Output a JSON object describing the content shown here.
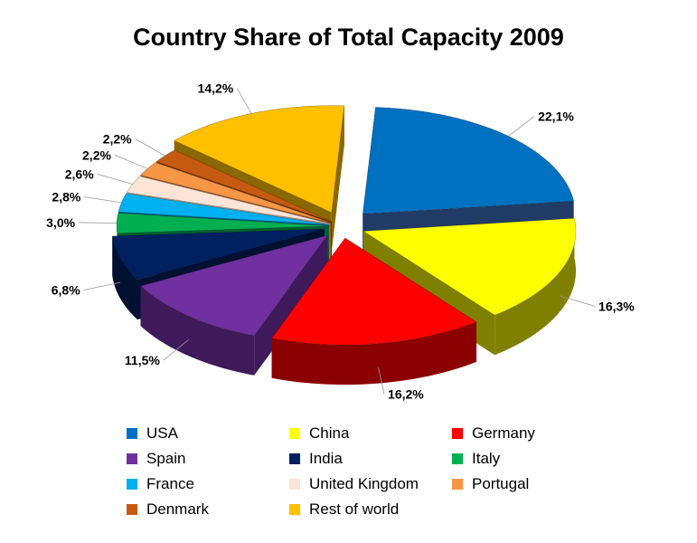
{
  "chart_data": {
    "type": "pie",
    "title": "Country Share of Total Capacity 2009",
    "legend_position": "bottom",
    "slices": [
      {
        "name": "USA",
        "value": 22.1,
        "label": "22,1%",
        "color": "#0070C0",
        "side": "#1F3B66"
      },
      {
        "name": "China",
        "value": 16.3,
        "label": "16,3%",
        "color": "#FFFF00",
        "side": "#808000"
      },
      {
        "name": "Germany",
        "value": 16.2,
        "label": "16,2%",
        "color": "#FF0000",
        "side": "#8B0000"
      },
      {
        "name": "Spain",
        "value": 11.5,
        "label": "11,5%",
        "color": "#7030A0",
        "side": "#3F1A5A"
      },
      {
        "name": "India",
        "value": 6.8,
        "label": "6,8%",
        "color": "#002060",
        "side": "#001030"
      },
      {
        "name": "Italy",
        "value": 3.0,
        "label": "3,0%",
        "color": "#00B050",
        "side": "#006030"
      },
      {
        "name": "France",
        "value": 2.8,
        "label": "2,8%",
        "color": "#00B0F0",
        "side": "#006080"
      },
      {
        "name": "United Kingdom",
        "value": 2.6,
        "label": "2,6%",
        "color": "#FCE4D6",
        "side": "#A89888"
      },
      {
        "name": "Portugal",
        "value": 2.2,
        "label": "2,2%",
        "color": "#F79646",
        "side": "#9A5A28"
      },
      {
        "name": "Denmark",
        "value": 2.2,
        "label": "2,2%",
        "color": "#C55A11",
        "side": "#6A300A"
      },
      {
        "name": "Rest of world",
        "value": 14.2,
        "label": "14,2%",
        "color": "#FFC000",
        "side": "#8A6800"
      }
    ]
  }
}
